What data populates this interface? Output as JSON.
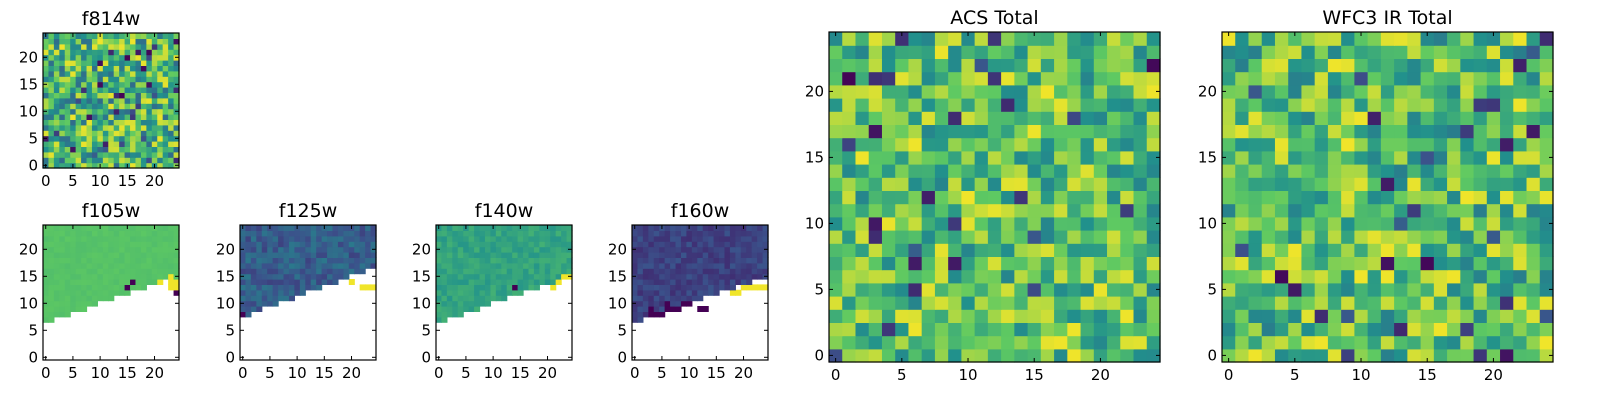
{
  "figure": {
    "background": "#ffffff"
  },
  "colormap": [
    "#440154",
    "#3b528b",
    "#21918c",
    "#5ec962",
    "#fde725"
  ],
  "chart_data": [
    {
      "id": "f814w",
      "type": "heatmap",
      "title": "f814w",
      "grid_size": 25,
      "pattern": "noise",
      "seed": 814,
      "range": [
        0.35,
        0.98
      ],
      "outlier_rate": 0.05,
      "xticks": [
        0,
        5,
        10,
        15,
        20
      ],
      "yticks": [
        0,
        5,
        10,
        15,
        20
      ]
    },
    {
      "id": "f105w",
      "type": "heatmap",
      "title": "f105w",
      "grid_size": 25,
      "pattern": "masked",
      "seed": 105,
      "base": 0.72,
      "spread": 0.02,
      "low_row": 7.5,
      "slope": 0.35,
      "hot_cells": [
        [
          23,
          13
        ],
        [
          24,
          13
        ],
        [
          21,
          14
        ],
        [
          23,
          14
        ],
        [
          24,
          14
        ],
        [
          23,
          15
        ]
      ],
      "dark_cells": [
        [
          24,
          12
        ],
        [
          15,
          13
        ],
        [
          16,
          14
        ]
      ],
      "xticks": [
        0,
        5,
        10,
        15,
        20
      ],
      "yticks": [
        0,
        5,
        10,
        15,
        20
      ]
    },
    {
      "id": "f125w",
      "type": "heatmap",
      "title": "f125w",
      "grid_size": 25,
      "pattern": "masked",
      "seed": 125,
      "base": 0.3,
      "spread": 0.1,
      "low_row": 8.5,
      "slope": 0.38,
      "hot_cells": [
        [
          22,
          13
        ],
        [
          23,
          13
        ],
        [
          24,
          13
        ],
        [
          20,
          14
        ]
      ],
      "dark_cells": [
        [
          0,
          8
        ]
      ],
      "xticks": [
        0,
        5,
        10,
        15,
        20
      ],
      "yticks": [
        0,
        5,
        10,
        15,
        20
      ]
    },
    {
      "id": "f140w",
      "type": "heatmap",
      "title": "f140w",
      "grid_size": 25,
      "pattern": "masked",
      "seed": 140,
      "base": 0.58,
      "spread": 0.06,
      "low_row": 7.5,
      "slope": 0.35,
      "hot_cells": [
        [
          21,
          13
        ],
        [
          22,
          14
        ],
        [
          23,
          15
        ],
        [
          24,
          15
        ]
      ],
      "dark_cells": [
        [
          14,
          13
        ]
      ],
      "xticks": [
        0,
        5,
        10,
        15,
        20
      ],
      "yticks": [
        0,
        5,
        10,
        15,
        20
      ]
    },
    {
      "id": "f160w",
      "type": "heatmap",
      "title": "f160w",
      "grid_size": 25,
      "pattern": "masked",
      "seed": 160,
      "base": 0.2,
      "spread": 0.06,
      "low_row": 7.5,
      "slope": 0.35,
      "hot_cells": [
        [
          18,
          12
        ],
        [
          19,
          12
        ],
        [
          20,
          13
        ],
        [
          21,
          13
        ],
        [
          22,
          13
        ],
        [
          23,
          13
        ],
        [
          24,
          13
        ]
      ],
      "dark_cells": [
        [
          3,
          8
        ],
        [
          4,
          8
        ],
        [
          5,
          8
        ],
        [
          6,
          9
        ],
        [
          7,
          9
        ],
        [
          8,
          9
        ],
        [
          9,
          10
        ],
        [
          10,
          10
        ],
        [
          12,
          9
        ],
        [
          13,
          9
        ],
        [
          6,
          10
        ],
        [
          3,
          9
        ]
      ],
      "xticks": [
        0,
        5,
        10,
        15,
        20
      ],
      "yticks": [
        0,
        5,
        10,
        15,
        20
      ]
    },
    {
      "id": "acs_total",
      "type": "heatmap",
      "title": "ACS Total",
      "grid_size": 25,
      "pattern": "noise",
      "seed": 2001,
      "range": [
        0.45,
        0.98
      ],
      "outlier_rate": 0.04,
      "xticks": [
        0,
        5,
        10,
        15,
        20
      ],
      "yticks": [
        0,
        5,
        10,
        15,
        20
      ]
    },
    {
      "id": "wfc3_ir_total",
      "type": "heatmap",
      "title": "WFC3 IR Total",
      "grid_size": 25,
      "pattern": "noise",
      "seed": 3003,
      "range": [
        0.42,
        0.98
      ],
      "outlier_rate": 0.04,
      "xticks": [
        0,
        5,
        10,
        15,
        20
      ],
      "yticks": [
        0,
        5,
        10,
        15,
        20
      ]
    }
  ]
}
